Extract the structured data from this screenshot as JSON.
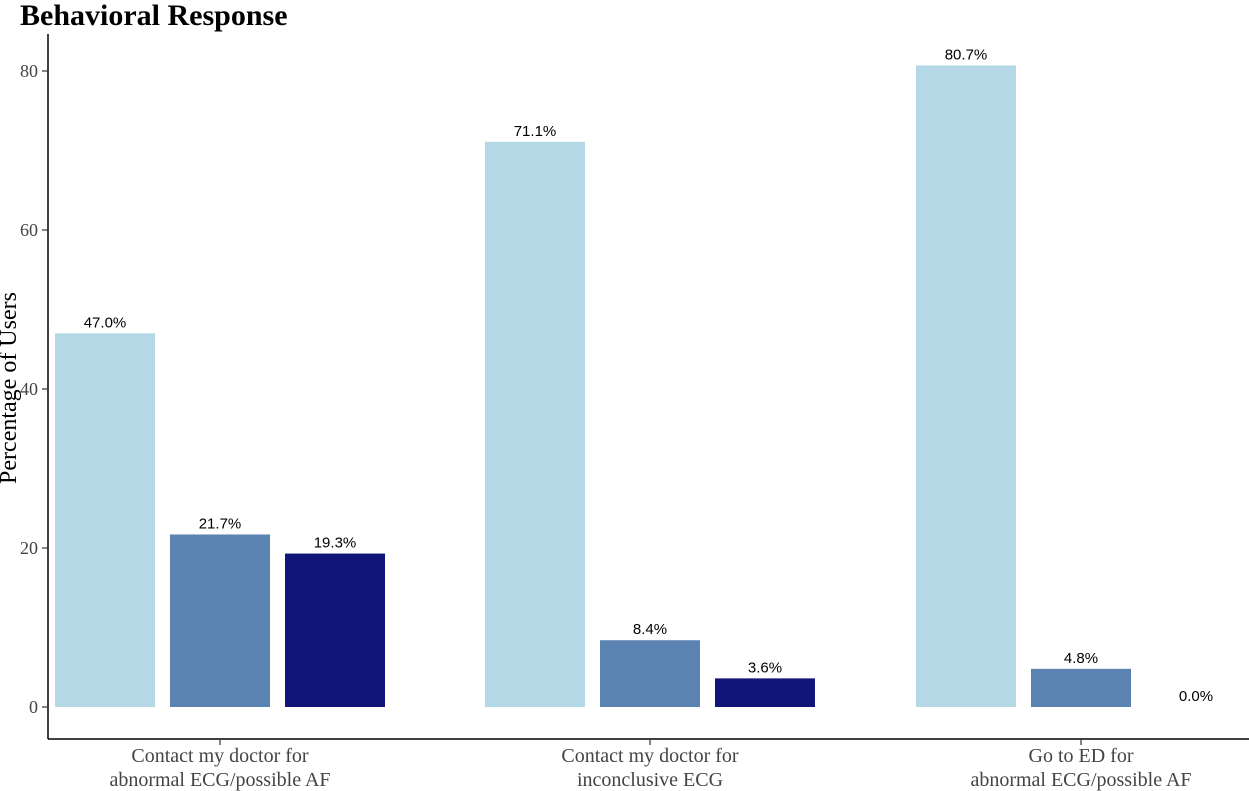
{
  "chart_data": {
    "type": "bar",
    "title": "Behavioral Response",
    "xlabel": "",
    "ylabel": "Percentage of Users",
    "ylim": [
      0,
      85
    ],
    "yticks": [
      0,
      20,
      40,
      60,
      80
    ],
    "grid": false,
    "legend": "none",
    "categories": [
      [
        "Contact my doctor for",
        "abnormal ECG/possible AF"
      ],
      [
        "Contact my doctor for",
        "inconclusive ECG"
      ],
      [
        "Go to ED for",
        "abnormal ECG/possible AF"
      ]
    ],
    "series": [
      {
        "color": "#b5d8e6",
        "values": [
          47.0,
          71.1,
          80.7
        ],
        "labels": [
          "47.0%",
          "71.1%",
          "80.7%"
        ]
      },
      {
        "color": "#5b83b1",
        "values": [
          21.7,
          8.4,
          4.8
        ],
        "labels": [
          "21.7%",
          "8.4%",
          "4.8%"
        ]
      },
      {
        "color": "#11157a",
        "values": [
          19.3,
          3.6,
          0.0
        ],
        "labels": [
          "19.3%",
          "3.6%",
          "0.0%"
        ]
      }
    ]
  }
}
